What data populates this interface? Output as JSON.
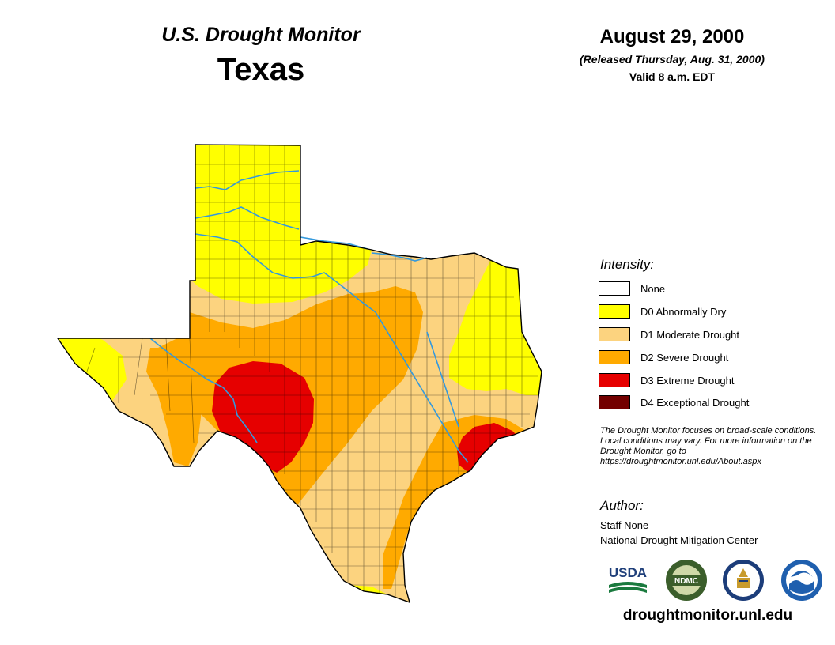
{
  "header": {
    "title": "U.S. Drought Monitor",
    "state": "Texas",
    "date": "August 29, 2000",
    "released": "(Released Thursday, Aug. 31, 2000)",
    "valid": "Valid 8 a.m. EDT"
  },
  "legend": {
    "title": "Intensity:",
    "items": [
      {
        "label": "None",
        "color": "#ffffff"
      },
      {
        "label": "D0 Abnormally Dry",
        "color": "#ffff00"
      },
      {
        "label": "D1 Moderate Drought",
        "color": "#fcd37f"
      },
      {
        "label": "D2 Severe Drought",
        "color": "#ffaa00"
      },
      {
        "label": "D3 Extreme Drought",
        "color": "#e60000"
      },
      {
        "label": "D4 Exceptional Drought",
        "color": "#730000"
      }
    ]
  },
  "note": "The Drought Monitor focuses on broad-scale conditions. Local conditions may vary. For more information on the Drought Monitor, go to https://droughtmonitor.unl.edu/About.aspx",
  "author": {
    "title": "Author:",
    "name": "Staff None",
    "org": "National Drought Mitigation Center"
  },
  "logos": {
    "usda": "USDA",
    "ndmc": "NDMC",
    "doc": "DOC",
    "noaa": "NOAA"
  },
  "url": "droughtmonitor.unl.edu",
  "colors": {
    "river": "#3399dd",
    "county_line": "#000000"
  }
}
